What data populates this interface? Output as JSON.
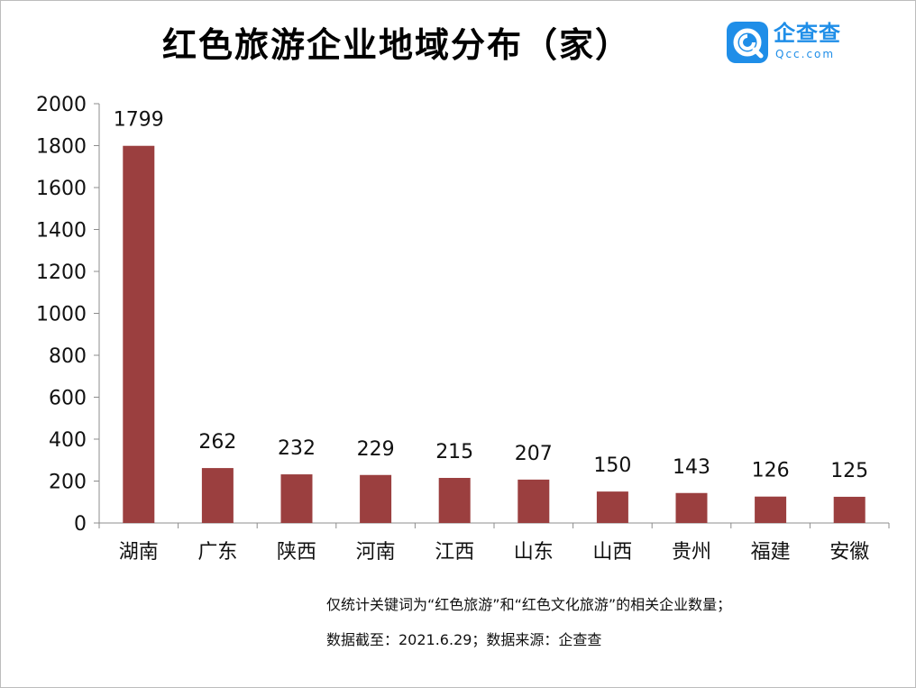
{
  "title": "红色旅游企业地域分布（家）",
  "logo": {
    "name": "企查查",
    "domain": "Qcc.com",
    "icon": "qcc-logo-icon",
    "color": "#1f8ee8"
  },
  "notes": [
    "仅统计关键词为“红色旅游”和“红色文化旅游”的相关企业数量；",
    "数据截至：2021.6.29；数据来源：企查查"
  ],
  "chart_data": {
    "type": "bar",
    "title": "红色旅游企业地域分布（家）",
    "categories": [
      "湖南",
      "广东",
      "陕西",
      "河南",
      "江西",
      "山东",
      "山西",
      "贵州",
      "福建",
      "安徽"
    ],
    "values": [
      1799,
      262,
      232,
      229,
      215,
      207,
      150,
      143,
      126,
      125
    ],
    "ylim": [
      0,
      2000
    ],
    "yticks": [
      0,
      200,
      400,
      600,
      800,
      1000,
      1200,
      1400,
      1600,
      1800,
      2000
    ],
    "grid": false,
    "legend": "none",
    "bar_color": "#9b3f3f",
    "data_labels": true
  }
}
